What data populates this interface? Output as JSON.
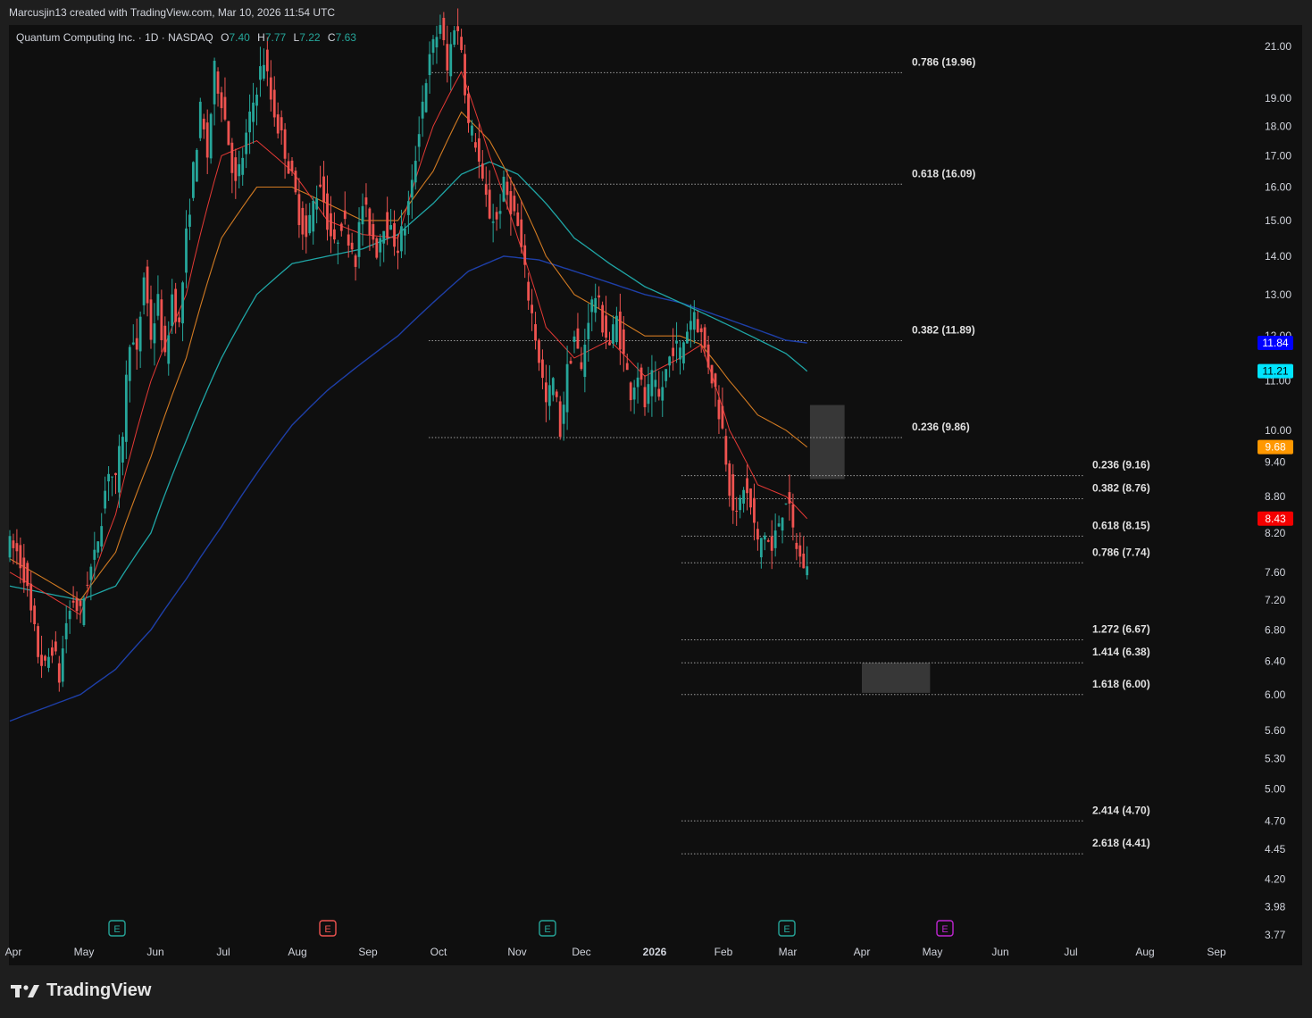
{
  "header": {
    "credit": "Marcusjin13 created with TradingView.com, Mar 10, 2026 11:54 UTC"
  },
  "legend": {
    "symbol": "Quantum Computing Inc. · 1D · NASDAQ",
    "open_label": "O",
    "open": "7.40",
    "high_label": "H",
    "high": "7.77",
    "low_label": "L",
    "low": "7.22",
    "close_label": "C",
    "close": "7.63"
  },
  "brand": {
    "name": "TradingView"
  },
  "colors": {
    "background": "#0f0f0f",
    "up": "#26a69a",
    "down": "#ef5350",
    "ema_fast": "#e53935",
    "ema_mid": "#d17a22",
    "ema_slow": "#1fa6a6",
    "sma_long": "#1e3fa8",
    "fib_line": "#bdbdbd"
  },
  "chart_data": {
    "type": "candlestick",
    "scale": "log",
    "y_ticks": [
      21.0,
      19.0,
      18.0,
      17.0,
      16.0,
      15.0,
      14.0,
      13.0,
      12.0,
      11.0,
      10.0,
      9.4,
      8.8,
      8.2,
      7.6,
      7.2,
      6.8,
      6.4,
      6.0,
      5.6,
      5.3,
      5.0,
      4.7,
      4.45,
      4.2,
      3.98,
      3.77
    ],
    "y_tick_labels": [
      "21.00",
      "19.00",
      "18.00",
      "17.00",
      "16.00",
      "15.00",
      "14.00",
      "13.00",
      "12.00",
      "11.00",
      "10.00",
      "9.40",
      "8.80",
      "8.20",
      "7.60",
      "7.20",
      "6.80",
      "6.40",
      "6.00",
      "5.60",
      "5.30",
      "5.00",
      "4.70",
      "4.45",
      "4.20",
      "3.98",
      "3.77"
    ],
    "x_ticks": [
      "Apr",
      "May",
      "Jun",
      "Jul",
      "Aug",
      "Sep",
      "Oct",
      "Nov",
      "Dec",
      "2026",
      "Feb",
      "Mar",
      "Apr",
      "May",
      "Jun",
      "Jul",
      "Aug",
      "Sep"
    ],
    "price_tags": [
      {
        "value": 11.84,
        "label": "11.84",
        "color": "#0000ff",
        "text_color": "#ffffff"
      },
      {
        "value": 11.21,
        "label": "11.21",
        "color": "#00e5ff",
        "text_color": "#000000"
      },
      {
        "value": 9.68,
        "label": "9.68",
        "color": "#ff9800",
        "text_color": "#ffffff"
      },
      {
        "value": 8.43,
        "label": "8.43",
        "color": "#f50000",
        "text_color": "#ffffff"
      }
    ],
    "fib_levels": [
      {
        "label": "0.786 (19.96)",
        "value": 19.96,
        "group": "A"
      },
      {
        "label": "0.618 (16.09)",
        "value": 16.09,
        "group": "A"
      },
      {
        "label": "0.382 (11.89)",
        "value": 11.89,
        "group": "A"
      },
      {
        "label": "0.236 (9.86)",
        "value": 9.86,
        "group": "A"
      },
      {
        "label": "0.236 (9.16)",
        "value": 9.16,
        "group": "B"
      },
      {
        "label": "0.382 (8.76)",
        "value": 8.76,
        "group": "B"
      },
      {
        "label": "0.618 (8.15)",
        "value": 8.15,
        "group": "B"
      },
      {
        "label": "0.786 (7.74)",
        "value": 7.74,
        "group": "B"
      },
      {
        "label": "1.272 (6.67)",
        "value": 6.67,
        "group": "B"
      },
      {
        "label": "1.414 (6.38)",
        "value": 6.38,
        "group": "B"
      },
      {
        "label": "1.618 (6.00)",
        "value": 6.0,
        "group": "B"
      },
      {
        "label": "2.414 (4.70)",
        "value": 4.7,
        "group": "B"
      },
      {
        "label": "2.618 (4.41)",
        "value": 4.41,
        "group": "B"
      }
    ],
    "zones": [
      {
        "name": "resistance-zone",
        "from_date": "2026-03-10",
        "to_date": "2026-03-24",
        "low": 9.1,
        "high": 10.5
      },
      {
        "name": "target-zone",
        "from_date": "2026-04-01",
        "to_date": "2026-04-30",
        "low": 6.02,
        "high": 6.38
      }
    ],
    "events": [
      {
        "month": "May",
        "type": "earnings",
        "label": "E",
        "color": "#26a69a"
      },
      {
        "month": "Aug",
        "type": "earnings",
        "label": "E",
        "color": "#ef5350"
      },
      {
        "month": "Nov",
        "type": "earnings",
        "label": "E",
        "color": "#26a69a"
      },
      {
        "month": "Mar",
        "type": "earnings",
        "label": "E",
        "color": "#26a69a"
      },
      {
        "month": "May",
        "type": "earnings-upcoming",
        "label": "E",
        "color": "#c026d3"
      }
    ],
    "price_path": [
      [
        0,
        8.0
      ],
      [
        2,
        7.9
      ],
      [
        4,
        7.6
      ],
      [
        6,
        7.0
      ],
      [
        8,
        6.5
      ],
      [
        10,
        6.3
      ],
      [
        12,
        6.6
      ],
      [
        14,
        6.2
      ],
      [
        16,
        6.9
      ],
      [
        18,
        7.2
      ],
      [
        20,
        7.0
      ],
      [
        22,
        7.5
      ],
      [
        24,
        7.8
      ],
      [
        26,
        8.5
      ],
      [
        28,
        9.3
      ],
      [
        30,
        9.0
      ],
      [
        32,
        10.0
      ],
      [
        34,
        12.0
      ],
      [
        36,
        11.5
      ],
      [
        38,
        13.5
      ],
      [
        40,
        12.0
      ],
      [
        42,
        12.8
      ],
      [
        44,
        11.4
      ],
      [
        46,
        13.0
      ],
      [
        48,
        12.2
      ],
      [
        50,
        14.5
      ],
      [
        52,
        16.5
      ],
      [
        54,
        18.5
      ],
      [
        56,
        17.0
      ],
      [
        58,
        20.0
      ],
      [
        60,
        19.0
      ],
      [
        62,
        17.5
      ],
      [
        64,
        16.0
      ],
      [
        66,
        17.0
      ],
      [
        68,
        18.2
      ],
      [
        70,
        19.5
      ],
      [
        72,
        20.5
      ],
      [
        74,
        19.0
      ],
      [
        76,
        18.0
      ],
      [
        78,
        17.2
      ],
      [
        80,
        16.2
      ],
      [
        82,
        15.2
      ],
      [
        84,
        14.5
      ],
      [
        86,
        15.5
      ],
      [
        88,
        16.2
      ],
      [
        90,
        15.0
      ],
      [
        92,
        14.2
      ],
      [
        94,
        15.0
      ],
      [
        96,
        14.6
      ],
      [
        98,
        14.0
      ],
      [
        100,
        15.5
      ],
      [
        102,
        14.8
      ],
      [
        104,
        14.2
      ],
      [
        106,
        15.0
      ],
      [
        108,
        14.6
      ],
      [
        110,
        14.3
      ],
      [
        112,
        14.9
      ],
      [
        114,
        16.0
      ],
      [
        116,
        18.0
      ],
      [
        118,
        19.8
      ],
      [
        120,
        21.0
      ],
      [
        122,
        22.0
      ],
      [
        124,
        20.0
      ],
      [
        126,
        22.0
      ],
      [
        128,
        21.0
      ],
      [
        130,
        18.0
      ],
      [
        132,
        17.5
      ],
      [
        134,
        16.0
      ],
      [
        136,
        15.2
      ],
      [
        138,
        15.0
      ],
      [
        140,
        16.0
      ],
      [
        142,
        15.5
      ],
      [
        144,
        14.8
      ],
      [
        146,
        13.5
      ],
      [
        148,
        12.5
      ],
      [
        150,
        11.5
      ],
      [
        152,
        10.5
      ],
      [
        154,
        11.0
      ],
      [
        156,
        10.0
      ],
      [
        158,
        11.2
      ],
      [
        160,
        12.0
      ],
      [
        162,
        11.2
      ],
      [
        164,
        12.5
      ],
      [
        166,
        13.0
      ],
      [
        168,
        12.3
      ],
      [
        170,
        11.8
      ],
      [
        172,
        12.4
      ],
      [
        174,
        11.5
      ],
      [
        176,
        10.8
      ],
      [
        178,
        11.2
      ],
      [
        180,
        10.5
      ],
      [
        182,
        11.0
      ],
      [
        184,
        10.6
      ],
      [
        186,
        11.2
      ],
      [
        188,
        11.8
      ],
      [
        190,
        11.6
      ],
      [
        192,
        12.2
      ],
      [
        194,
        12.6
      ],
      [
        196,
        12.0
      ],
      [
        198,
        11.4
      ],
      [
        200,
        10.8
      ],
      [
        202,
        10.0
      ],
      [
        204,
        9.0
      ],
      [
        206,
        8.4
      ],
      [
        208,
        9.0
      ],
      [
        210,
        8.6
      ],
      [
        212,
        8.0
      ],
      [
        214,
        8.2
      ],
      [
        216,
        7.9
      ],
      [
        218,
        8.4
      ],
      [
        220,
        8.8
      ],
      [
        222,
        8.2
      ],
      [
        224,
        7.8
      ],
      [
        226,
        7.63
      ]
    ],
    "ma_fast_path": [
      [
        0,
        7.6
      ],
      [
        20,
        7.0
      ],
      [
        30,
        8.5
      ],
      [
        40,
        11.0
      ],
      [
        50,
        13.0
      ],
      [
        60,
        17.0
      ],
      [
        70,
        17.5
      ],
      [
        80,
        16.5
      ],
      [
        90,
        15.0
      ],
      [
        100,
        14.6
      ],
      [
        110,
        14.5
      ],
      [
        120,
        18.0
      ],
      [
        128,
        20.0
      ],
      [
        136,
        17.0
      ],
      [
        144,
        14.5
      ],
      [
        152,
        12.2
      ],
      [
        160,
        11.5
      ],
      [
        170,
        11.9
      ],
      [
        180,
        11.1
      ],
      [
        190,
        11.5
      ],
      [
        196,
        11.8
      ],
      [
        204,
        10.0
      ],
      [
        212,
        9.0
      ],
      [
        220,
        8.8
      ],
      [
        226,
        8.43
      ]
    ],
    "ma_mid_path": [
      [
        0,
        7.8
      ],
      [
        20,
        7.2
      ],
      [
        30,
        7.9
      ],
      [
        40,
        9.5
      ],
      [
        50,
        11.5
      ],
      [
        60,
        14.5
      ],
      [
        70,
        16.0
      ],
      [
        80,
        16.0
      ],
      [
        90,
        15.5
      ],
      [
        100,
        15.0
      ],
      [
        110,
        15.0
      ],
      [
        120,
        16.5
      ],
      [
        128,
        18.5
      ],
      [
        136,
        17.5
      ],
      [
        144,
        15.8
      ],
      [
        152,
        14.0
      ],
      [
        160,
        13.0
      ],
      [
        170,
        12.5
      ],
      [
        180,
        12.0
      ],
      [
        190,
        12.0
      ],
      [
        196,
        11.8
      ],
      [
        204,
        11.0
      ],
      [
        212,
        10.3
      ],
      [
        220,
        10.0
      ],
      [
        226,
        9.68
      ]
    ],
    "ma_slow_path": [
      [
        0,
        7.4
      ],
      [
        20,
        7.2
      ],
      [
        30,
        7.4
      ],
      [
        40,
        8.2
      ],
      [
        50,
        9.8
      ],
      [
        60,
        11.5
      ],
      [
        70,
        13.0
      ],
      [
        80,
        13.8
      ],
      [
        90,
        14.0
      ],
      [
        100,
        14.2
      ],
      [
        110,
        14.6
      ],
      [
        120,
        15.5
      ],
      [
        128,
        16.4
      ],
      [
        136,
        16.8
      ],
      [
        144,
        16.4
      ],
      [
        152,
        15.5
      ],
      [
        160,
        14.5
      ],
      [
        170,
        13.8
      ],
      [
        180,
        13.2
      ],
      [
        190,
        12.8
      ],
      [
        200,
        12.4
      ],
      [
        210,
        12.0
      ],
      [
        220,
        11.6
      ],
      [
        226,
        11.21
      ]
    ],
    "sma_long_path": [
      [
        0,
        5.7
      ],
      [
        20,
        6.0
      ],
      [
        30,
        6.3
      ],
      [
        40,
        6.8
      ],
      [
        50,
        7.5
      ],
      [
        60,
        8.3
      ],
      [
        70,
        9.2
      ],
      [
        80,
        10.1
      ],
      [
        90,
        10.8
      ],
      [
        100,
        11.4
      ],
      [
        110,
        12.0
      ],
      [
        120,
        12.8
      ],
      [
        130,
        13.6
      ],
      [
        140,
        14.0
      ],
      [
        150,
        13.9
      ],
      [
        160,
        13.6
      ],
      [
        170,
        13.3
      ],
      [
        180,
        13.0
      ],
      [
        190,
        12.8
      ],
      [
        200,
        12.5
      ],
      [
        210,
        12.2
      ],
      [
        220,
        11.9
      ],
      [
        226,
        11.84
      ]
    ]
  }
}
